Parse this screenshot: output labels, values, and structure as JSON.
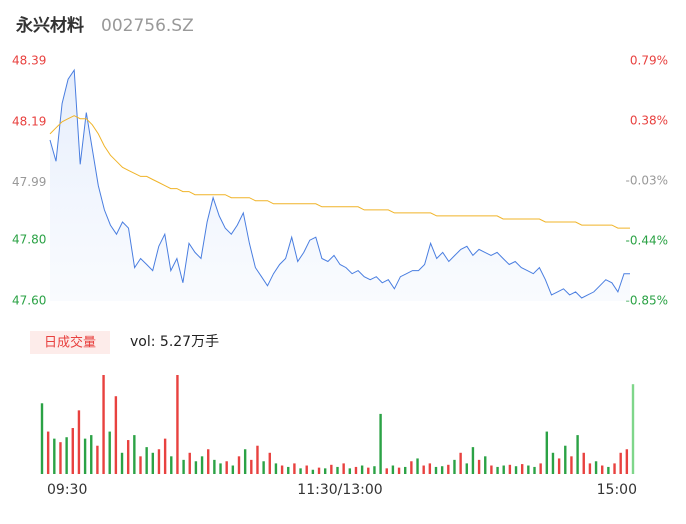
{
  "chart_data": {
    "type": "line",
    "title": "永兴材料",
    "subtitle": "002756.SZ",
    "volume_label": "日成交量",
    "volume_text": "vol: 5.27万手",
    "ylim": [
      47.6,
      48.39
    ],
    "yticks": [
      48.39,
      48.19,
      47.99,
      {
        "value": 47.8,
        "label": "47.80"
      },
      {
        "value": 47.6,
        "label": "47.60"
      }
    ],
    "y2lim": [
      -0.85,
      0.79
    ],
    "y2ticks": [
      {
        "value": 0.79,
        "label": "0.79%"
      },
      {
        "value": 0.38,
        "label": "0.38%"
      },
      {
        "value": -0.03,
        "label": "-0.03%"
      },
      {
        "value": -0.44,
        "label": "-0.44%"
      },
      {
        "value": -0.85,
        "label": "-0.85%"
      }
    ],
    "ytick_colors": [
      "#e8413f",
      "#e8413f",
      "#999999",
      "#2ba245",
      "#2ba245"
    ],
    "xlim": [
      0,
      96
    ],
    "xticks": [
      {
        "value": 0,
        "label": "09:30"
      },
      {
        "value": 48,
        "label": "11:30/13:00"
      },
      {
        "value": 96,
        "label": "15:00"
      }
    ],
    "grid": false,
    "series": [
      {
        "color": "#4a7ee0",
        "values": [
          48.13,
          48.06,
          48.25,
          48.33,
          48.36,
          48.05,
          48.22,
          48.1,
          47.98,
          47.9,
          47.85,
          47.82,
          47.86,
          47.84,
          47.71,
          47.74,
          47.72,
          47.7,
          47.78,
          47.82,
          47.7,
          47.74,
          47.66,
          47.79,
          47.76,
          47.74,
          47.86,
          47.94,
          47.88,
          47.84,
          47.82,
          47.85,
          47.89,
          47.79,
          47.71,
          47.68,
          47.65,
          47.69,
          47.72,
          47.74,
          47.81,
          47.73,
          47.76,
          47.8,
          47.81,
          47.74,
          47.73,
          47.75,
          47.72,
          47.71,
          47.69,
          47.7,
          47.68,
          47.67,
          47.68,
          47.66,
          47.67,
          47.64,
          47.68,
          47.69,
          47.7,
          47.7,
          47.72,
          47.79,
          47.74,
          47.76,
          47.73,
          47.75,
          47.77,
          47.78,
          47.75,
          47.77,
          47.76,
          47.75,
          47.76,
          47.74,
          47.72,
          47.73,
          47.71,
          47.7,
          47.69,
          47.71,
          47.67,
          47.62,
          47.63,
          47.64,
          47.62,
          47.63,
          47.61,
          47.62,
          47.63,
          47.65,
          47.67,
          47.66,
          47.63,
          47.69,
          47.69
        ]
      },
      {
        "color": "#f0b429",
        "values": [
          48.15,
          48.17,
          48.19,
          48.2,
          48.21,
          48.2,
          48.2,
          48.18,
          48.15,
          48.11,
          48.08,
          48.06,
          48.04,
          48.03,
          48.02,
          48.01,
          48.01,
          48.0,
          47.99,
          47.98,
          47.97,
          47.97,
          47.96,
          47.96,
          47.95,
          47.95,
          47.95,
          47.95,
          47.95,
          47.95,
          47.94,
          47.94,
          47.94,
          47.94,
          47.93,
          47.93,
          47.93,
          47.92,
          47.92,
          47.92,
          47.92,
          47.92,
          47.92,
          47.92,
          47.92,
          47.91,
          47.91,
          47.91,
          47.91,
          47.91,
          47.91,
          47.91,
          47.9,
          47.9,
          47.9,
          47.9,
          47.9,
          47.89,
          47.89,
          47.89,
          47.89,
          47.89,
          47.89,
          47.89,
          47.88,
          47.88,
          47.88,
          47.88,
          47.88,
          47.88,
          47.88,
          47.88,
          47.88,
          47.88,
          47.88,
          47.87,
          47.87,
          47.87,
          47.87,
          47.87,
          47.87,
          47.87,
          47.86,
          47.86,
          47.86,
          47.86,
          47.86,
          47.86,
          47.85,
          47.85,
          47.85,
          47.85,
          47.85,
          47.85,
          47.84,
          47.84,
          47.84
        ]
      }
    ],
    "volume": {
      "type": "bar",
      "ylim": [
        0,
        1400
      ],
      "values": [
        1000,
        600,
        500,
        450,
        520,
        650,
        900,
        500,
        550,
        400,
        1400,
        600,
        1100,
        300,
        480,
        550,
        250,
        380,
        300,
        350,
        500,
        250,
        1400,
        200,
        300,
        180,
        250,
        350,
        200,
        150,
        180,
        120,
        250,
        350,
        200,
        400,
        180,
        300,
        150,
        120,
        100,
        150,
        80,
        120,
        60,
        90,
        80,
        130,
        100,
        150,
        80,
        100,
        120,
        90,
        110,
        850,
        80,
        120,
        90,
        100,
        180,
        220,
        120,
        150,
        100,
        110,
        130,
        200,
        300,
        150,
        380,
        200,
        250,
        120,
        100,
        120,
        130,
        110,
        140,
        120,
        100,
        150,
        600,
        300,
        220,
        400,
        250,
        550,
        300,
        150,
        180,
        120,
        100,
        150,
        300,
        350,
        1270
      ],
      "colors": [
        "#2ba245",
        "#e8413f",
        "#2ba245",
        "#e8413f",
        "#2ba245",
        "#e8413f",
        "#e8413f",
        "#2ba245",
        "#2ba245",
        "#e8413f",
        "#e8413f",
        "#2ba245",
        "#e8413f",
        "#2ba245",
        "#e8413f",
        "#2ba245",
        "#e8413f",
        "#2ba245",
        "#2ba245",
        "#e8413f",
        "#e8413f",
        "#2ba245",
        "#e8413f",
        "#2ba245",
        "#e8413f",
        "#2ba245",
        "#2ba245",
        "#e8413f",
        "#2ba245",
        "#2ba245",
        "#e8413f",
        "#2ba245",
        "#e8413f",
        "#2ba245",
        "#e8413f",
        "#e8413f",
        "#2ba245",
        "#e8413f",
        "#2ba245",
        "#e8413f",
        "#2ba245",
        "#e8413f",
        "#2ba245",
        "#e8413f",
        "#2ba245",
        "#e8413f",
        "#2ba245",
        "#e8413f",
        "#2ba245",
        "#e8413f",
        "#2ba245",
        "#e8413f",
        "#2ba245",
        "#e8413f",
        "#2ba245",
        "#2ba245",
        "#e8413f",
        "#2ba245",
        "#e8413f",
        "#2ba245",
        "#e8413f",
        "#2ba245",
        "#e8413f",
        "#e8413f",
        "#2ba245",
        "#2ba245",
        "#e8413f",
        "#2ba245",
        "#e8413f",
        "#2ba245",
        "#2ba245",
        "#e8413f",
        "#2ba245",
        "#e8413f",
        "#2ba245",
        "#2ba245",
        "#e8413f",
        "#2ba245",
        "#e8413f",
        "#2ba245",
        "#2ba245",
        "#e8413f",
        "#2ba245",
        "#2ba245",
        "#e8413f",
        "#2ba245",
        "#e8413f",
        "#2ba245",
        "#e8413f",
        "#e8413f",
        "#2ba245",
        "#e8413f",
        "#2ba245",
        "#e8413f",
        "#e8413f",
        "#e8413f",
        "#7fd68a"
      ]
    }
  }
}
